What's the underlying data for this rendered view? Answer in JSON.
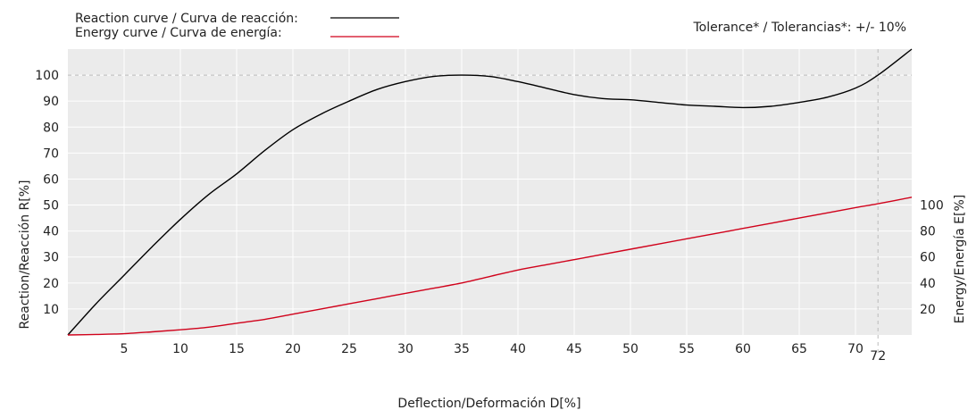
{
  "chart_data": {
    "type": "line",
    "legend": {
      "position": "top-left",
      "items": [
        {
          "label": "Reaction curve / Curva de reacción:",
          "color": "#000000"
        },
        {
          "label": "Energy curve / Curva de energía:",
          "color": "#d0021b"
        }
      ]
    },
    "tolerance_note": "Tolerance* / Tolerancias*: +/- 10%",
    "xlabel": "Deflection/Deformación D[%]",
    "ylabel_left": "Reaction/Reacción R[%]",
    "ylabel_right": "Energy/Energía E[%]",
    "xlim": [
      0,
      75
    ],
    "ylim_left": [
      0,
      110
    ],
    "x_ticks": [
      5,
      10,
      15,
      20,
      25,
      30,
      35,
      40,
      45,
      50,
      55,
      60,
      65,
      70
    ],
    "x_marker": {
      "value": 72,
      "label": "72"
    },
    "y_ticks_left": [
      10,
      20,
      30,
      40,
      50,
      60,
      70,
      80,
      90,
      100
    ],
    "y_ticks_right": [
      20,
      40,
      60,
      80,
      100
    ],
    "right_axis_scale": 0.5,
    "reference_line_y": 100,
    "grid": true,
    "series": [
      {
        "name": "Reaction curve / Curva de reacción:",
        "color": "#000000",
        "x": [
          0,
          2.5,
          5,
          7.5,
          10,
          12.5,
          15,
          17.5,
          20,
          22.5,
          25,
          27.5,
          30,
          32.5,
          35,
          37.5,
          40,
          42.5,
          45,
          47.5,
          50,
          52.5,
          55,
          57.5,
          60,
          62.5,
          65,
          67.5,
          70,
          72,
          75
        ],
        "y": [
          0,
          12,
          23,
          34,
          44.5,
          54,
          62,
          71,
          79,
          85,
          90,
          94.5,
          97.5,
          99.5,
          100,
          99.5,
          97.5,
          95,
          92.5,
          91,
          90.5,
          89.5,
          88.5,
          88,
          87.5,
          88,
          89.5,
          91.5,
          95,
          100,
          110
        ]
      },
      {
        "name": "Energy curve / Curva de energía:",
        "color": "#d0021b",
        "x": [
          0,
          2.5,
          5,
          7.5,
          10,
          12.5,
          15,
          17.5,
          20,
          22.5,
          25,
          27.5,
          30,
          32.5,
          35,
          37.5,
          40,
          42.5,
          45,
          47.5,
          50,
          52.5,
          55,
          57.5,
          60,
          62.5,
          65,
          67.5,
          70,
          72,
          75
        ],
        "y": [
          0,
          0.2,
          0.5,
          1.2,
          2,
          3,
          4.5,
          6,
          8,
          10,
          12,
          14,
          16,
          18,
          20,
          22.5,
          25,
          27,
          29,
          31,
          33,
          35,
          37,
          39,
          41,
          43,
          45,
          47,
          49,
          50.5,
          53
        ]
      }
    ]
  }
}
